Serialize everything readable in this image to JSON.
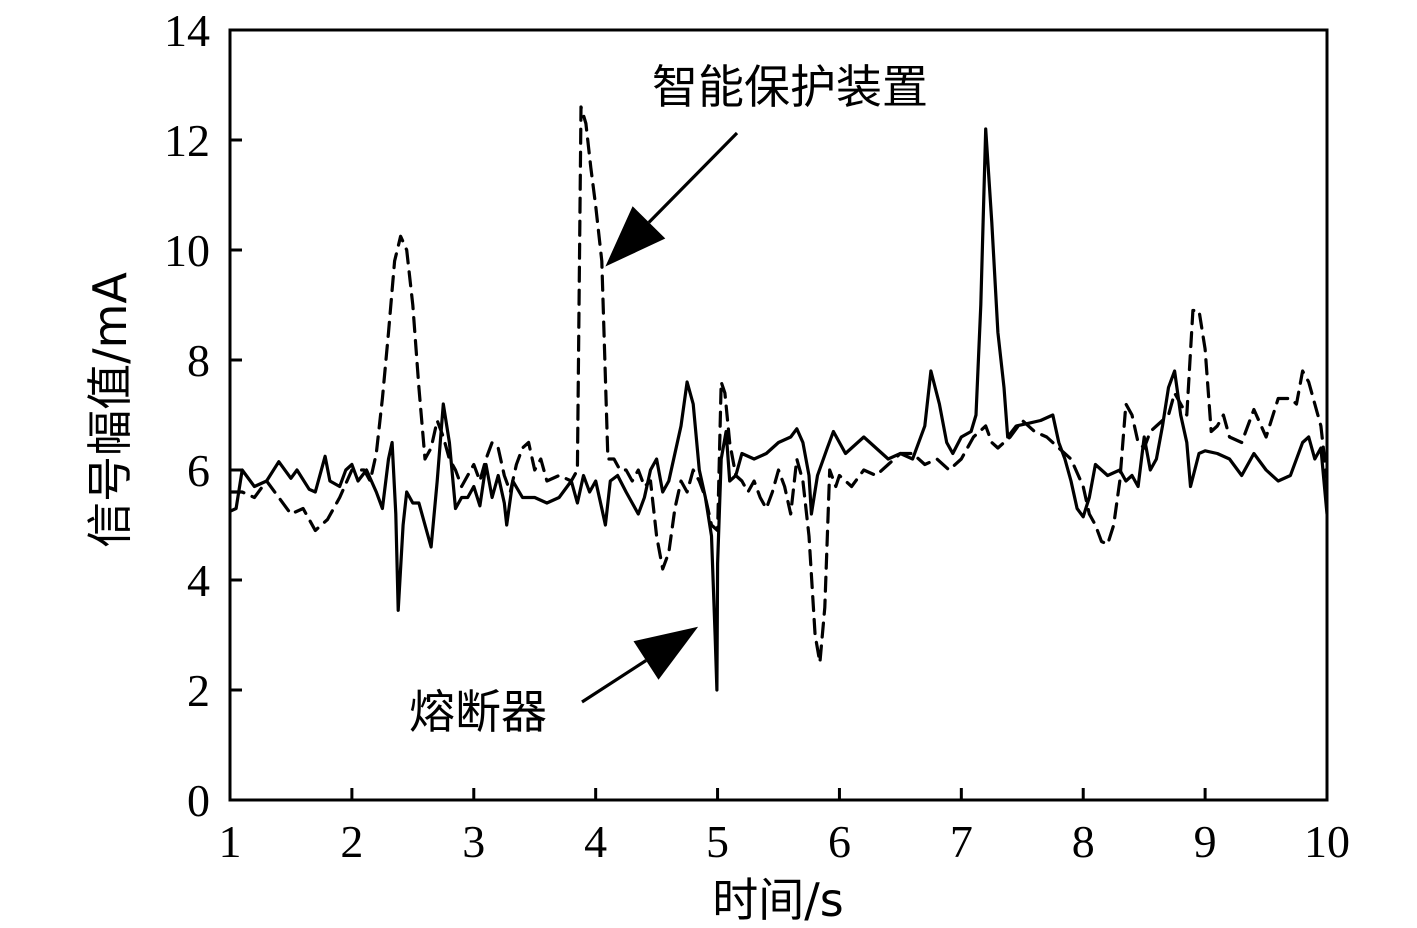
{
  "chart_data": {
    "type": "line",
    "xlabel": "时间/s",
    "ylabel": "信号幅值/mA",
    "xlim": [
      1,
      10
    ],
    "ylim": [
      0,
      14
    ],
    "xticks": [
      1,
      2,
      3,
      4,
      5,
      6,
      7,
      8,
      9,
      10
    ],
    "yticks": [
      0,
      2,
      4,
      6,
      8,
      10,
      12,
      14
    ],
    "grid": false,
    "series": [
      {
        "name": "熔断器",
        "style": "solid",
        "color": "#000000",
        "points": [
          [
            1.0,
            5.25
          ],
          [
            1.05,
            5.3
          ],
          [
            1.1,
            6.0
          ],
          [
            1.2,
            5.7
          ],
          [
            1.3,
            5.8
          ],
          [
            1.4,
            6.15
          ],
          [
            1.5,
            5.85
          ],
          [
            1.55,
            6.0
          ],
          [
            1.65,
            5.65
          ],
          [
            1.7,
            5.6
          ],
          [
            1.78,
            6.25
          ],
          [
            1.82,
            5.8
          ],
          [
            1.9,
            5.7
          ],
          [
            1.95,
            6.0
          ],
          [
            2.0,
            6.1
          ],
          [
            2.05,
            5.8
          ],
          [
            2.12,
            6.0
          ],
          [
            2.2,
            5.6
          ],
          [
            2.25,
            5.3
          ],
          [
            2.3,
            6.2
          ],
          [
            2.33,
            6.5
          ],
          [
            2.36,
            5.2
          ],
          [
            2.38,
            3.45
          ],
          [
            2.42,
            5.0
          ],
          [
            2.45,
            5.6
          ],
          [
            2.5,
            5.4
          ],
          [
            2.55,
            5.4
          ],
          [
            2.6,
            5.0
          ],
          [
            2.65,
            4.6
          ],
          [
            2.7,
            5.8
          ],
          [
            2.75,
            7.2
          ],
          [
            2.8,
            6.5
          ],
          [
            2.85,
            5.3
          ],
          [
            2.9,
            5.5
          ],
          [
            2.95,
            5.5
          ],
          [
            3.0,
            5.7
          ],
          [
            3.05,
            5.35
          ],
          [
            3.1,
            6.1
          ],
          [
            3.15,
            5.5
          ],
          [
            3.2,
            5.9
          ],
          [
            3.25,
            5.4
          ],
          [
            3.27,
            5.0
          ],
          [
            3.32,
            5.8
          ],
          [
            3.4,
            5.5
          ],
          [
            3.5,
            5.5
          ],
          [
            3.6,
            5.4
          ],
          [
            3.7,
            5.5
          ],
          [
            3.8,
            5.8
          ],
          [
            3.85,
            5.4
          ],
          [
            3.9,
            5.9
          ],
          [
            3.95,
            5.6
          ],
          [
            4.0,
            5.8
          ],
          [
            4.05,
            5.3
          ],
          [
            4.08,
            5.0
          ],
          [
            4.12,
            5.8
          ],
          [
            4.18,
            5.9
          ],
          [
            4.25,
            5.6
          ],
          [
            4.3,
            5.4
          ],
          [
            4.35,
            5.2
          ],
          [
            4.4,
            5.5
          ],
          [
            4.45,
            6.0
          ],
          [
            4.5,
            6.2
          ],
          [
            4.55,
            5.6
          ],
          [
            4.6,
            5.8
          ],
          [
            4.65,
            6.3
          ],
          [
            4.7,
            6.8
          ],
          [
            4.75,
            7.6
          ],
          [
            4.8,
            7.2
          ],
          [
            4.85,
            6.0
          ],
          [
            4.9,
            5.5
          ],
          [
            4.95,
            4.8
          ],
          [
            4.98,
            3.0
          ],
          [
            4.995,
            2.0
          ],
          [
            5.0,
            4.3
          ],
          [
            5.03,
            6.2
          ],
          [
            5.07,
            6.7
          ],
          [
            5.1,
            5.8
          ],
          [
            5.15,
            5.9
          ],
          [
            5.2,
            6.3
          ],
          [
            5.3,
            6.2
          ],
          [
            5.4,
            6.3
          ],
          [
            5.5,
            6.5
          ],
          [
            5.6,
            6.6
          ],
          [
            5.65,
            6.75
          ],
          [
            5.7,
            6.5
          ],
          [
            5.75,
            5.9
          ],
          [
            5.77,
            5.2
          ],
          [
            5.82,
            5.9
          ],
          [
            5.9,
            6.4
          ],
          [
            5.95,
            6.7
          ],
          [
            6.05,
            6.3
          ],
          [
            6.1,
            6.4
          ],
          [
            6.2,
            6.6
          ],
          [
            6.3,
            6.4
          ],
          [
            6.4,
            6.2
          ],
          [
            6.5,
            6.3
          ],
          [
            6.6,
            6.2
          ],
          [
            6.7,
            6.8
          ],
          [
            6.75,
            7.8
          ],
          [
            6.82,
            7.2
          ],
          [
            6.88,
            6.5
          ],
          [
            6.93,
            6.3
          ],
          [
            7.0,
            6.6
          ],
          [
            7.08,
            6.7
          ],
          [
            7.12,
            7.0
          ],
          [
            7.16,
            9.0
          ],
          [
            7.2,
            12.2
          ],
          [
            7.25,
            10.5
          ],
          [
            7.3,
            8.5
          ],
          [
            7.35,
            7.5
          ],
          [
            7.38,
            6.6
          ],
          [
            7.45,
            6.8
          ],
          [
            7.55,
            6.85
          ],
          [
            7.65,
            6.9
          ],
          [
            7.75,
            7.0
          ],
          [
            7.8,
            6.5
          ],
          [
            7.85,
            6.2
          ],
          [
            7.9,
            5.8
          ],
          [
            7.95,
            5.3
          ],
          [
            8.0,
            5.15
          ],
          [
            8.05,
            5.5
          ],
          [
            8.1,
            6.1
          ],
          [
            8.2,
            5.9
          ],
          [
            8.3,
            6.0
          ],
          [
            8.35,
            5.8
          ],
          [
            8.4,
            5.9
          ],
          [
            8.45,
            5.7
          ],
          [
            8.5,
            6.6
          ],
          [
            8.55,
            6.0
          ],
          [
            8.6,
            6.2
          ],
          [
            8.65,
            6.8
          ],
          [
            8.7,
            7.5
          ],
          [
            8.75,
            7.8
          ],
          [
            8.8,
            7.0
          ],
          [
            8.85,
            6.5
          ],
          [
            8.88,
            5.7
          ],
          [
            8.95,
            6.3
          ],
          [
            9.0,
            6.35
          ],
          [
            9.1,
            6.3
          ],
          [
            9.2,
            6.2
          ],
          [
            9.3,
            5.9
          ],
          [
            9.4,
            6.3
          ],
          [
            9.5,
            6.0
          ],
          [
            9.6,
            5.8
          ],
          [
            9.7,
            5.9
          ],
          [
            9.8,
            6.5
          ],
          [
            9.85,
            6.6
          ],
          [
            9.9,
            6.2
          ],
          [
            9.95,
            6.4
          ],
          [
            10.0,
            5.2
          ]
        ]
      },
      {
        "name": "智能保护装置",
        "style": "dashed",
        "color": "#000000",
        "points": [
          [
            1.0,
            5.6
          ],
          [
            1.1,
            5.6
          ],
          [
            1.2,
            5.5
          ],
          [
            1.3,
            5.8
          ],
          [
            1.4,
            5.5
          ],
          [
            1.5,
            5.2
          ],
          [
            1.6,
            5.3
          ],
          [
            1.7,
            4.9
          ],
          [
            1.8,
            5.1
          ],
          [
            1.9,
            5.5
          ],
          [
            2.0,
            6.0
          ],
          [
            2.1,
            6.0
          ],
          [
            2.15,
            5.8
          ],
          [
            2.2,
            6.3
          ],
          [
            2.25,
            7.3
          ],
          [
            2.3,
            8.5
          ],
          [
            2.35,
            9.8
          ],
          [
            2.4,
            10.25
          ],
          [
            2.45,
            10.0
          ],
          [
            2.5,
            9.0
          ],
          [
            2.55,
            7.5
          ],
          [
            2.6,
            6.2
          ],
          [
            2.65,
            6.4
          ],
          [
            2.7,
            6.9
          ],
          [
            2.75,
            6.6
          ],
          [
            2.8,
            6.2
          ],
          [
            2.85,
            6.0
          ],
          [
            2.9,
            5.7
          ],
          [
            2.95,
            5.9
          ],
          [
            3.0,
            6.1
          ],
          [
            3.05,
            5.8
          ],
          [
            3.1,
            6.2
          ],
          [
            3.15,
            6.5
          ],
          [
            3.2,
            6.4
          ],
          [
            3.25,
            5.9
          ],
          [
            3.3,
            5.6
          ],
          [
            3.35,
            6.1
          ],
          [
            3.4,
            6.4
          ],
          [
            3.45,
            6.5
          ],
          [
            3.5,
            6.0
          ],
          [
            3.55,
            6.2
          ],
          [
            3.6,
            5.8
          ],
          [
            3.7,
            5.9
          ],
          [
            3.8,
            5.8
          ],
          [
            3.85,
            6.0
          ],
          [
            3.88,
            12.6
          ],
          [
            3.92,
            12.3
          ],
          [
            3.96,
            11.5
          ],
          [
            4.0,
            10.8
          ],
          [
            4.05,
            9.8
          ],
          [
            4.1,
            6.2
          ],
          [
            4.15,
            6.2
          ],
          [
            4.2,
            6.0
          ],
          [
            4.25,
            6.0
          ],
          [
            4.3,
            5.8
          ],
          [
            4.35,
            6.0
          ],
          [
            4.4,
            5.7
          ],
          [
            4.45,
            5.8
          ],
          [
            4.5,
            4.8
          ],
          [
            4.55,
            4.2
          ],
          [
            4.6,
            4.5
          ],
          [
            4.65,
            5.3
          ],
          [
            4.7,
            5.8
          ],
          [
            4.75,
            5.6
          ],
          [
            4.8,
            6.0
          ],
          [
            4.85,
            5.8
          ],
          [
            4.9,
            5.5
          ],
          [
            4.95,
            5.0
          ],
          [
            5.0,
            4.9
          ],
          [
            5.03,
            7.6
          ],
          [
            5.06,
            7.4
          ],
          [
            5.1,
            6.5
          ],
          [
            5.15,
            5.9
          ],
          [
            5.2,
            5.8
          ],
          [
            5.25,
            5.6
          ],
          [
            5.3,
            5.8
          ],
          [
            5.35,
            5.5
          ],
          [
            5.4,
            5.3
          ],
          [
            5.45,
            5.6
          ],
          [
            5.5,
            6.0
          ],
          [
            5.55,
            5.7
          ],
          [
            5.6,
            5.2
          ],
          [
            5.65,
            6.2
          ],
          [
            5.7,
            5.8
          ],
          [
            5.75,
            4.8
          ],
          [
            5.8,
            3.0
          ],
          [
            5.84,
            2.5
          ],
          [
            5.88,
            3.5
          ],
          [
            5.92,
            6.0
          ],
          [
            5.97,
            5.7
          ],
          [
            6.0,
            5.9
          ],
          [
            6.1,
            5.7
          ],
          [
            6.2,
            6.0
          ],
          [
            6.3,
            5.9
          ],
          [
            6.4,
            6.1
          ],
          [
            6.5,
            6.3
          ],
          [
            6.6,
            6.3
          ],
          [
            6.7,
            6.1
          ],
          [
            6.8,
            6.2
          ],
          [
            6.9,
            6.0
          ],
          [
            7.0,
            6.2
          ],
          [
            7.1,
            6.6
          ],
          [
            7.2,
            6.8
          ],
          [
            7.25,
            6.5
          ],
          [
            7.3,
            6.4
          ],
          [
            7.4,
            6.6
          ],
          [
            7.5,
            6.9
          ],
          [
            7.6,
            6.7
          ],
          [
            7.7,
            6.6
          ],
          [
            7.8,
            6.4
          ],
          [
            7.9,
            6.2
          ],
          [
            8.0,
            5.7
          ],
          [
            8.05,
            5.2
          ],
          [
            8.1,
            5.0
          ],
          [
            8.15,
            4.7
          ],
          [
            8.2,
            4.65
          ],
          [
            8.25,
            5.0
          ],
          [
            8.3,
            5.8
          ],
          [
            8.35,
            7.2
          ],
          [
            8.4,
            7.0
          ],
          [
            8.45,
            6.5
          ],
          [
            8.5,
            6.4
          ],
          [
            8.55,
            6.7
          ],
          [
            8.6,
            6.8
          ],
          [
            8.65,
            6.9
          ],
          [
            8.7,
            7.0
          ],
          [
            8.75,
            7.4
          ],
          [
            8.8,
            7.2
          ],
          [
            8.85,
            7.0
          ],
          [
            8.9,
            8.9
          ],
          [
            8.95,
            8.9
          ],
          [
            9.0,
            8.2
          ],
          [
            9.05,
            6.7
          ],
          [
            9.1,
            6.8
          ],
          [
            9.15,
            7.0
          ],
          [
            9.2,
            6.6
          ],
          [
            9.3,
            6.5
          ],
          [
            9.4,
            7.1
          ],
          [
            9.5,
            6.6
          ],
          [
            9.6,
            7.3
          ],
          [
            9.7,
            7.3
          ],
          [
            9.75,
            7.2
          ],
          [
            9.8,
            7.8
          ],
          [
            9.85,
            7.6
          ],
          [
            9.9,
            7.2
          ],
          [
            9.95,
            6.8
          ],
          [
            10.0,
            5.8
          ]
        ]
      }
    ],
    "annotations": [
      {
        "text": "智能保护装置",
        "target": [
          4.08,
          9.7
        ]
      },
      {
        "text": "熔断器",
        "target": [
          4.84,
          3.15
        ]
      }
    ]
  }
}
